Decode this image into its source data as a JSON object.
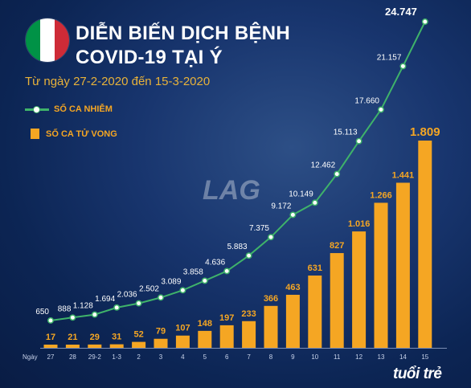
{
  "title_line1": "DIỄN BIẾN DỊCH BỆNH",
  "title_line2": "COVID-19 TẠI Ý",
  "subtitle": "Từ ngày 27-2-2020 đến 15-3-2020",
  "flag_colors": [
    "#009246",
    "#ffffff",
    "#ce2b37"
  ],
  "brand": "tuổi trẻ",
  "watermark": "LAG.vn",
  "colors": {
    "infected_line": "#3fb36a",
    "deaths_bar": "#f5a623",
    "background": "#0c2554"
  },
  "chart_data": {
    "type": "bar",
    "x_axis_label": "Ngày",
    "categories": [
      "27",
      "28",
      "29-2",
      "1-3",
      "2",
      "3",
      "4",
      "5",
      "6",
      "7",
      "8",
      "9",
      "10",
      "11",
      "12",
      "13",
      "14",
      "15"
    ],
    "series": [
      {
        "name": "SỐ CA NHIỄM",
        "type": "line",
        "values": [
          650,
          888,
          1128,
          1694,
          2036,
          2502,
          3089,
          3858,
          4636,
          5883,
          7375,
          9172,
          10149,
          12462,
          15113,
          17660,
          21157,
          24747
        ],
        "labels": [
          "650",
          "888",
          "1.128",
          "1.694",
          "2.036",
          "2.502",
          "3.089",
          "3.858",
          "4.636",
          "5.883",
          "7.375",
          "9.172",
          "10.149",
          "12.462",
          "15.113",
          "17.660",
          "21.157",
          "24.747"
        ]
      },
      {
        "name": "SỐ CA TỬ VONG",
        "type": "bar",
        "values": [
          17,
          21,
          29,
          31,
          52,
          79,
          107,
          148,
          197,
          233,
          366,
          463,
          631,
          827,
          1016,
          1266,
          1441,
          1809
        ],
        "labels": [
          "17",
          "21",
          "29",
          "31",
          "52",
          "79",
          "107",
          "148",
          "197",
          "233",
          "366",
          "463",
          "631",
          "827",
          "1.016",
          "1.266",
          "1.441",
          "1.809"
        ]
      }
    ],
    "legend_position": "top-left",
    "grid": false
  }
}
